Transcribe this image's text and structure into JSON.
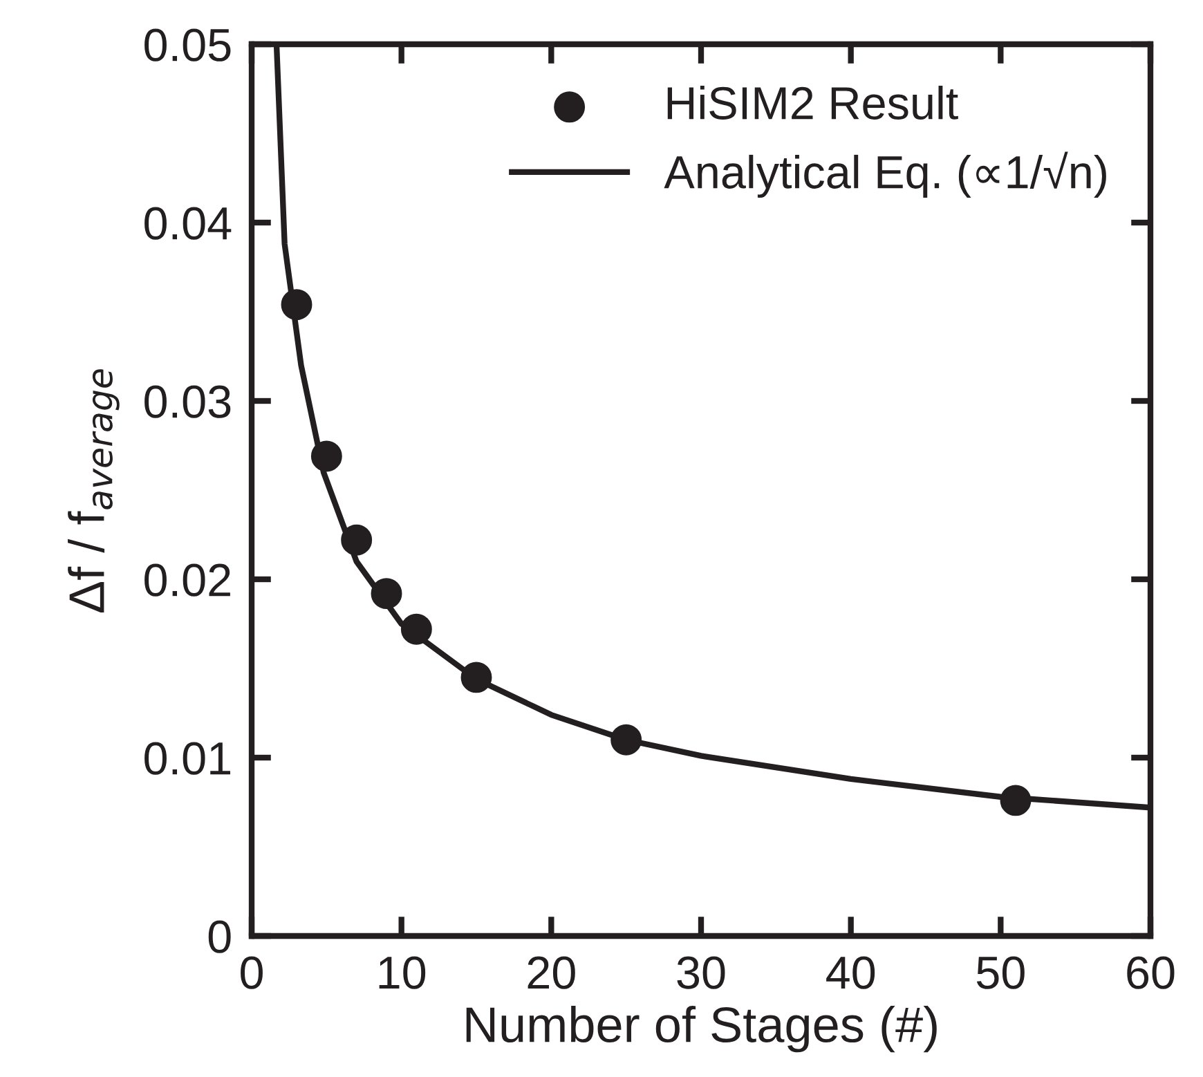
{
  "chart_data": {
    "type": "scatter",
    "xlabel": "Number of Stages (#)",
    "ylabel": "Δf / f$_{average}$",
    "xlim": [
      0,
      60
    ],
    "xticks": [
      0,
      10,
      20,
      30,
      40,
      50,
      60
    ],
    "ylim": [
      0,
      0.05
    ],
    "yticks": [
      0,
      0.01,
      0.02,
      0.03,
      0.04,
      0.05
    ],
    "grid": false,
    "legend": "top right",
    "series": [
      {
        "name": "HiSIM2 Result",
        "marker": "circle",
        "color": "#231f20",
        "x": [
          3,
          5,
          7,
          9,
          11,
          15,
          25,
          51
        ],
        "values": [
          0.0354,
          0.0269,
          0.0222,
          0.0192,
          0.0172,
          0.0145,
          0.011,
          0.0076
        ]
      },
      {
        "name": "Analytical Eq. (∝1/√n)",
        "type": "line",
        "marker": "none",
        "line_style": "solid",
        "color": "#231f20",
        "x": [
          1.66,
          2.2,
          3.3,
          4.8,
          7,
          10,
          15,
          20,
          25,
          30,
          40,
          50,
          60
        ],
        "values": [
          0.05,
          0.0388,
          0.032,
          0.026,
          0.021,
          0.0175,
          0.0144,
          0.0124,
          0.011,
          0.0101,
          0.0088,
          0.0078,
          0.0072
        ]
      }
    ]
  }
}
